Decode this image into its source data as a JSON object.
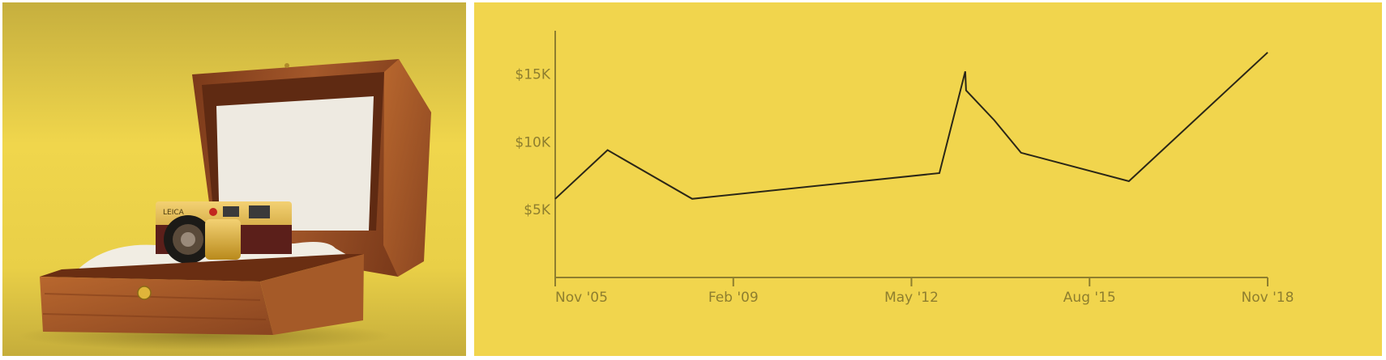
{
  "photo": {
    "subject": "camera-in-wooden-box",
    "lettering": "LEICA",
    "colors": {
      "background": "#f0d54a",
      "wood": "#8a4220",
      "gold": "#d4a829",
      "cushion": "#efebe2"
    }
  },
  "chart_data": {
    "type": "line",
    "title": "",
    "xlabel": "",
    "ylabel": "",
    "x_axis": {
      "type": "date",
      "range": [
        "2005-11",
        "2018-11"
      ],
      "ticks": [
        {
          "value": "2005-11",
          "label": "Nov '05"
        },
        {
          "value": "2009-02",
          "label": "Feb '09"
        },
        {
          "value": "2012-05",
          "label": "May '12"
        },
        {
          "value": "2015-08",
          "label": "Aug '15"
        },
        {
          "value": "2018-11",
          "label": "Nov '18"
        }
      ]
    },
    "y_axis": {
      "range": [
        0,
        18200
      ],
      "ticks": [
        {
          "value": 5000,
          "label": "$5K"
        },
        {
          "value": 10000,
          "label": "$10K"
        },
        {
          "value": 15000,
          "label": "$15K"
        }
      ]
    },
    "grid": false,
    "series": [
      {
        "color": "#2b2717",
        "points": [
          {
            "x": "2005-11-01",
            "y": 5800
          },
          {
            "x": "2006-10-15",
            "y": 9400
          },
          {
            "x": "2008-05-01",
            "y": 5800
          },
          {
            "x": "2012-11-05",
            "y": 7700
          },
          {
            "x": "2013-04-25",
            "y": 15200
          },
          {
            "x": "2013-04-30",
            "y": 13800
          },
          {
            "x": "2013-11-05",
            "y": 11600
          },
          {
            "x": "2014-05-01",
            "y": 9200
          },
          {
            "x": "2016-04-20",
            "y": 7100
          },
          {
            "x": "2018-11-01",
            "y": 16600
          }
        ]
      }
    ],
    "colors": {
      "background": "#f1d54d",
      "axis": "#8e7e2e",
      "line": "#2b2717"
    }
  }
}
